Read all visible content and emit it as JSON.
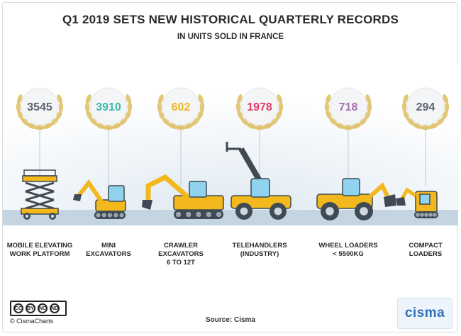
{
  "header": {
    "title": "Q1 2019 SETS NEW HISTORICAL QUARTERLY RECORDS",
    "subtitle": "IN UNITS SOLD IN FRANCE"
  },
  "chart_data": {
    "type": "table",
    "categories": [
      {
        "lines": [
          "MOBILE ELEVATING",
          "WORK PLATFORM"
        ],
        "value": 3545,
        "color": "#5a6572",
        "machine": "scissor-lift-icon"
      },
      {
        "lines": [
          "MINI",
          "EXCAVATORS"
        ],
        "value": 3910,
        "color": "#3db9b0",
        "machine": "mini-excavator-icon"
      },
      {
        "lines": [
          "CRAWLER",
          "EXCAVATORS",
          "6 TO 12T"
        ],
        "value": 602,
        "color": "#f2b81c",
        "machine": "crawler-excavator-icon"
      },
      {
        "lines": [
          "TELEHANDLERS",
          "(INDUSTRY)"
        ],
        "value": 1978,
        "color": "#e23d6a",
        "machine": "telehandler-icon"
      },
      {
        "lines": [
          "WHEEL LOADERS",
          "< 5500KG"
        ],
        "value": 718,
        "color": "#a970b5",
        "machine": "wheel-loader-icon"
      },
      {
        "lines": [
          "COMPACT",
          "LOADERS"
        ],
        "value": 294,
        "color": "#5a6572",
        "machine": "compact-loader-icon"
      }
    ],
    "colors": {
      "laurel": "#e0c471",
      "ground": "#c4d4e0",
      "machine_body": "#f2b81c",
      "machine_dark": "#3f4a55"
    }
  },
  "footer": {
    "source": "Source: Cisma",
    "license_credit": "© CismaCharts",
    "license_tags": [
      "CC",
      "BY",
      "NC",
      "ND"
    ],
    "logo": "cisma"
  }
}
